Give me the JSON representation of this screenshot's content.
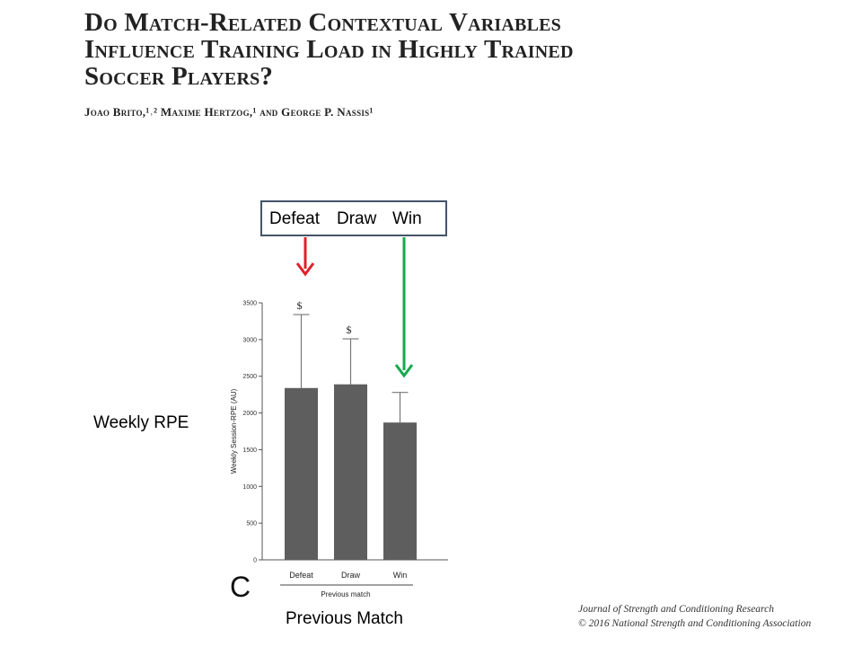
{
  "paper": {
    "title_lines": [
      "Do Match-Related Contextual Variables",
      "Influence Training Load in Highly Trained",
      "Soccer Players?"
    ],
    "authors": "Joao Brito,¹˒² Maxime Hertzog,¹ and George P. Nassis¹"
  },
  "annotations": {
    "legend": {
      "defeat": "Defeat",
      "draw": "Draw",
      "win": "Win"
    },
    "y_label": "Weekly RPE",
    "x_label": "Previous Match",
    "defeat_arrow_color": "#e0202a",
    "win_arrow_color": "#17a94d"
  },
  "citation": {
    "line1": "Journal of Strength and Conditioning Research",
    "line2": "© 2016 National Strength and Conditioning Association"
  },
  "chart_data": {
    "type": "bar",
    "panel_letter": "C",
    "categories": [
      "Defeat",
      "Draw",
      "Win"
    ],
    "values": [
      2340,
      2390,
      1870
    ],
    "error_upper": [
      3340,
      3010,
      2280
    ],
    "significance_marks": [
      "$",
      "$",
      ""
    ],
    "ylabel": "Weekly Session-RPE (AU)",
    "xlabel": "Previous match",
    "ylim": [
      0,
      3500
    ],
    "yticks": [
      0,
      500,
      1000,
      1500,
      2000,
      2500,
      3000,
      3500
    ],
    "bar_color": "#5e5e5e"
  }
}
